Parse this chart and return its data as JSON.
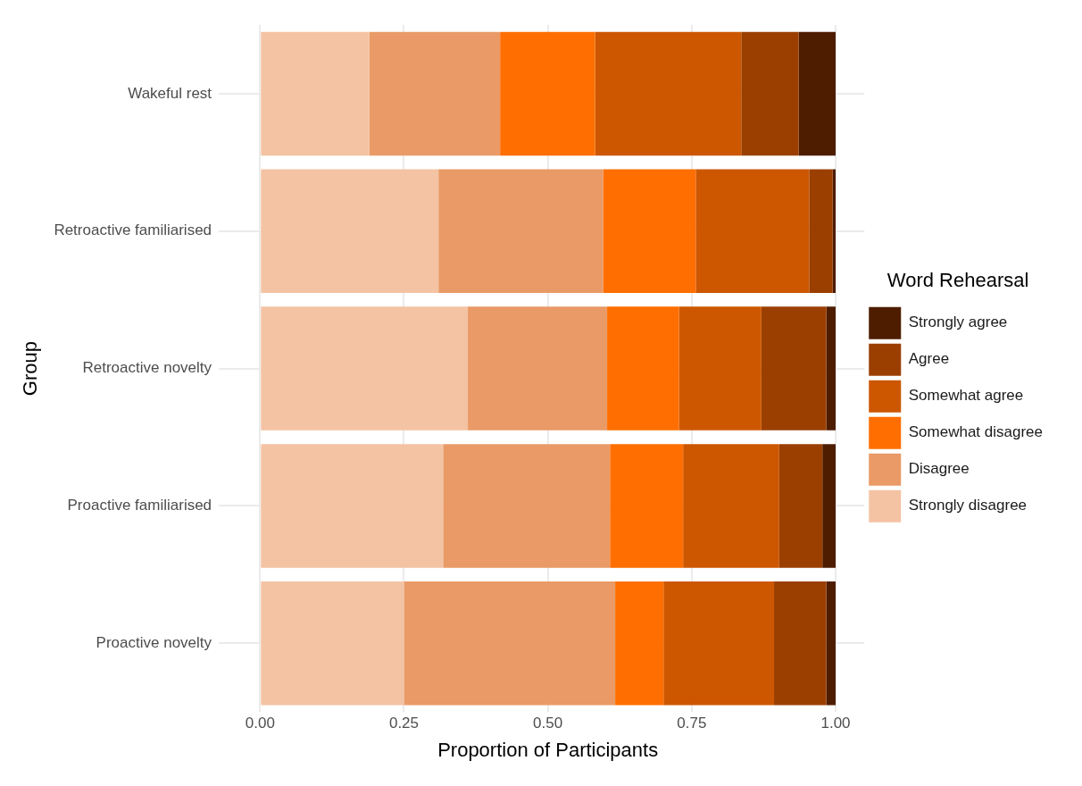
{
  "chart_data": {
    "type": "bar",
    "orientation": "horizontal",
    "stacked": true,
    "xlabel": "Proportion of Participants",
    "ylabel": "Group",
    "legend_title": "Word Rehearsal",
    "legend": "right",
    "grid": true,
    "categories": [
      "Wakeful rest",
      "Retroactive familiarised",
      "Retroactive novelty",
      "Proactive familiarised",
      "Proactive novelty"
    ],
    "xlim": [
      -0.05,
      1.05
    ],
    "xticks": [
      {
        "value": 0,
        "label": "0.00"
      },
      {
        "value": 0.25,
        "label": "0.25"
      },
      {
        "value": 0.5,
        "label": "0.50"
      },
      {
        "value": 0.75,
        "label": "0.75"
      },
      {
        "value": 1,
        "label": "1.00"
      }
    ],
    "series": [
      {
        "name": "Strongly disagree",
        "color": "#f4c3a3",
        "values": [
          0.19,
          0.31,
          0.361,
          0.318,
          0.25
        ]
      },
      {
        "name": "Disagree",
        "color": "#e99a66",
        "values": [
          0.227,
          0.286,
          0.242,
          0.29,
          0.367
        ]
      },
      {
        "name": "Somewhat disagree",
        "color": "#ff6e00",
        "values": [
          0.165,
          0.161,
          0.125,
          0.127,
          0.084
        ]
      },
      {
        "name": "Somewhat agree",
        "color": "#cd5700",
        "values": [
          0.254,
          0.197,
          0.143,
          0.167,
          0.192
        ]
      },
      {
        "name": "Agree",
        "color": "#9b3f00",
        "values": [
          0.1,
          0.041,
          0.113,
          0.075,
          0.091
        ]
      },
      {
        "name": "Strongly agree",
        "color": "#4e1d00",
        "values": [
          0.064,
          0.005,
          0.016,
          0.023,
          0.016
        ]
      }
    ]
  }
}
